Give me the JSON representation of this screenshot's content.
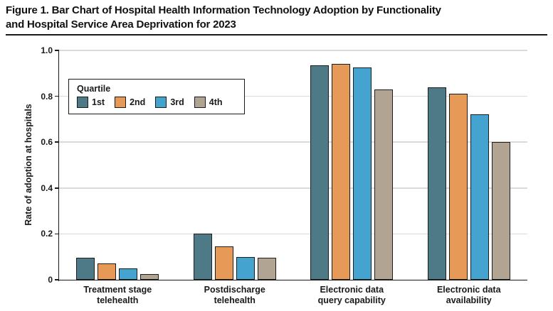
{
  "figure": {
    "title_line1": "Figure 1. Bar Chart of Hospital Health Information Technology Adoption by Functionality",
    "title_line2": "and Hospital Service Area Deprivation for 2023"
  },
  "chart_data": {
    "type": "bar",
    "title": "Figure 1. Bar Chart of Hospital Health Information Technology Adoption by Functionality and Hospital Service Area Deprivation for 2023",
    "xlabel": "",
    "ylabel": "Rate of adoption at hospitals",
    "ylim": [
      0,
      1.0
    ],
    "yticks": [
      0,
      0.2,
      0.4,
      0.6,
      0.8,
      1.0
    ],
    "ytick_labels": [
      "0",
      "0.2",
      "0.4",
      "0.6",
      "0.8",
      "1.0"
    ],
    "grid": "horizontal",
    "grid_color": "#dadada",
    "axis_color": "#1a1a1a",
    "bar_border_color": "#1c1c1c",
    "legend_title": "Quartile",
    "legend_position": "upper-left-inside",
    "categories": [
      [
        "Treatment stage",
        "telehealth"
      ],
      [
        "Postdischarge",
        "telehealth"
      ],
      [
        "Electronic data",
        "query capability"
      ],
      [
        "Electronic data",
        "availability"
      ]
    ],
    "series": [
      {
        "name": "1st",
        "color": "#4e7987",
        "values": [
          0.095,
          0.2,
          0.935,
          0.84
        ]
      },
      {
        "name": "2nd",
        "color": "#e79a58",
        "values": [
          0.07,
          0.145,
          0.94,
          0.81
        ]
      },
      {
        "name": "3rd",
        "color": "#45a3cf",
        "values": [
          0.05,
          0.1,
          0.925,
          0.72
        ]
      },
      {
        "name": "4th",
        "color": "#b2a493",
        "values": [
          0.025,
          0.095,
          0.83,
          0.6
        ]
      }
    ]
  }
}
